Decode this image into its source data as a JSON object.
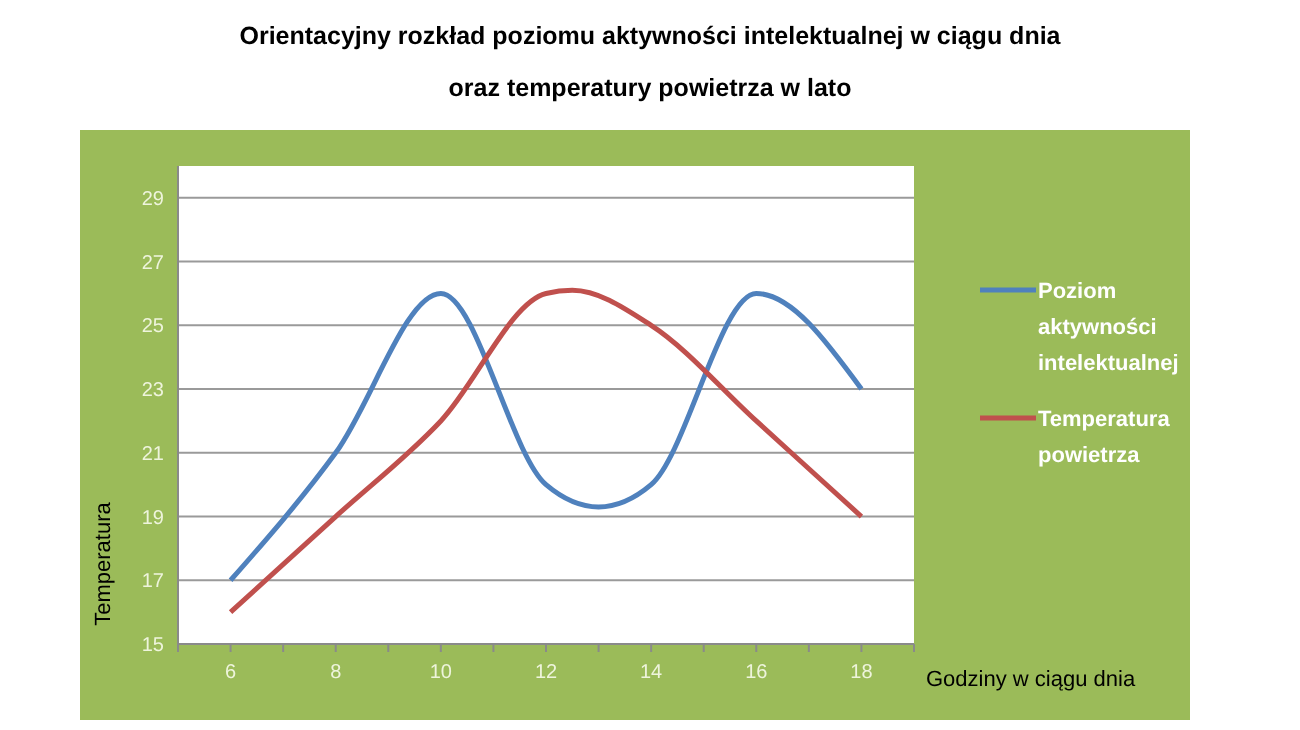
{
  "chart_data": {
    "type": "line",
    "title": "Orientacyjny rozkład poziomu aktywności intelektualnej w ciągu dnia\noraz temperatury powietrza w lato",
    "xlabel": "Godziny w ciągu dnia",
    "ylabel": "Temperatura",
    "xlim": [
      5,
      19
    ],
    "xticks": [
      6,
      8,
      10,
      12,
      14,
      16,
      18
    ],
    "ylim": [
      15,
      30
    ],
    "yticks": [
      15,
      17,
      19,
      21,
      23,
      25,
      27,
      29
    ],
    "grid": "y",
    "legend": "right",
    "marker": "none",
    "line_style": "solid",
    "series": [
      {
        "name": "Poziom aktywności intelektualnej",
        "color": "#4f81bd",
        "x": [
          6,
          8,
          10,
          12,
          13,
          14,
          16,
          18
        ],
        "values": [
          17,
          21,
          26,
          20,
          19.3,
          20,
          26,
          23
        ]
      },
      {
        "name": "Temperatura powietrza",
        "color": "#c0504d",
        "x": [
          6,
          8,
          10,
          12,
          12.5,
          14,
          16,
          18
        ],
        "values": [
          16,
          19,
          22,
          26,
          26.1,
          25,
          22,
          19
        ]
      }
    ]
  }
}
